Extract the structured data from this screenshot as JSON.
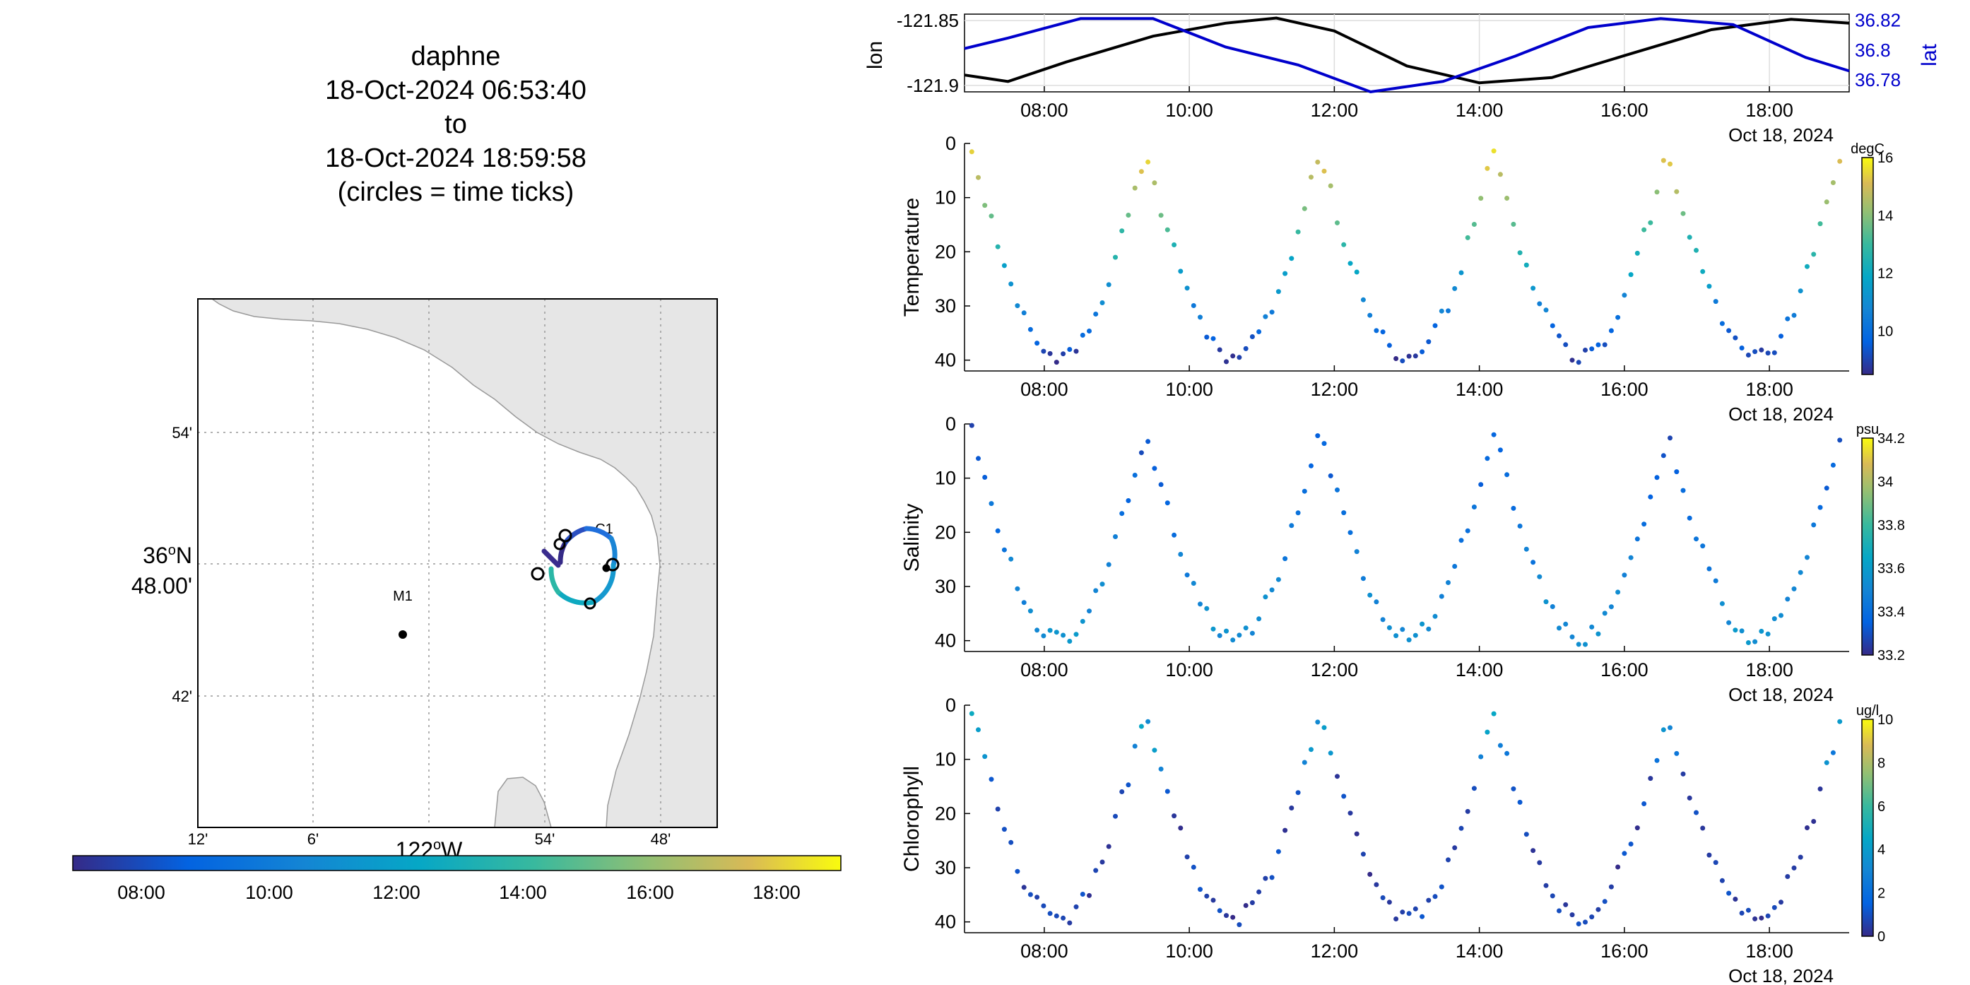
{
  "track": {
    "title_lines": [
      "daphne",
      "18-Oct-2024 06:53:40",
      "to",
      "18-Oct-2024 18:59:58",
      "(circles = time ticks)"
    ],
    "lat_ticks": [
      "54'",
      "36",
      "48.00'",
      "42'"
    ],
    "lat_deg_symbol": "o",
    "lat_hemisphere": "N",
    "lon_ticks": [
      "12'",
      "6'",
      "54'",
      "48'"
    ],
    "lon_center_label": "122",
    "lon_deg_symbol": "o",
    "lon_hemisphere": "W",
    "stations": [
      {
        "name": "M1"
      },
      {
        "name": "C1"
      }
    ],
    "colorbar_ticks": [
      "08:00",
      "10:00",
      "12:00",
      "14:00",
      "16:00",
      "18:00"
    ]
  },
  "time_axis": {
    "ticks": [
      "08:00",
      "10:00",
      "12:00",
      "14:00",
      "16:00",
      "18:00"
    ],
    "date_label": "Oct 18, 2024"
  },
  "chart_data": [
    {
      "type": "line",
      "title": "",
      "xlabel": "",
      "xlim": [
        6.9,
        19.1
      ],
      "series": [
        {
          "name": "lon",
          "color": "#000000",
          "x": [
            6.9,
            7.5,
            8.3,
            9.5,
            10.5,
            11.2,
            12.0,
            13.0,
            14.0,
            15.0,
            16.0,
            17.2,
            18.3,
            19.1
          ],
          "y": [
            -121.892,
            -121.897,
            -121.882,
            -121.862,
            -121.852,
            -121.848,
            -121.858,
            -121.885,
            -121.898,
            -121.894,
            -121.877,
            -121.857,
            -121.849,
            -121.852
          ]
        },
        {
          "name": "lat",
          "color": "#0000cc",
          "x": [
            6.9,
            7.5,
            8.5,
            9.5,
            10.5,
            11.5,
            12.5,
            13.5,
            14.5,
            15.5,
            16.5,
            17.5,
            18.5,
            19.1
          ],
          "y": [
            36.801,
            36.808,
            36.821,
            36.821,
            36.802,
            36.79,
            36.772,
            36.779,
            36.796,
            36.815,
            36.821,
            36.817,
            36.795,
            36.786
          ]
        }
      ],
      "y_left": {
        "label": "lon",
        "ticks": [
          -121.85,
          -121.9
        ],
        "lim": [
          -121.905,
          -121.845
        ]
      },
      "y_right": {
        "label": "lat",
        "ticks": [
          36.82,
          36.8,
          36.78
        ],
        "lim": [
          36.772,
          36.824
        ]
      }
    },
    {
      "type": "scatter",
      "ylabel": "Temperature",
      "units": "degC",
      "ylim": [
        0,
        42
      ],
      "y_ticks": [
        0,
        10,
        20,
        30,
        40
      ],
      "clim": [
        8.5,
        16
      ],
      "cbar_ticks": [
        10,
        12,
        14,
        16
      ]
    },
    {
      "type": "scatter",
      "ylabel": "Salinity",
      "units": "psu",
      "ylim": [
        0,
        42
      ],
      "y_ticks": [
        0,
        10,
        20,
        30,
        40
      ],
      "clim": [
        33.2,
        34.2
      ],
      "cbar_ticks": [
        33.2,
        33.4,
        33.6,
        33.8,
        34,
        34.2
      ]
    },
    {
      "type": "scatter",
      "ylabel": "Chlorophyll",
      "units": "ug/l",
      "ylim": [
        0,
        42
      ],
      "y_ticks": [
        0,
        10,
        20,
        30,
        40
      ],
      "clim": [
        0,
        10
      ],
      "cbar_ticks": [
        0,
        2,
        4,
        6,
        8,
        10
      ]
    }
  ]
}
